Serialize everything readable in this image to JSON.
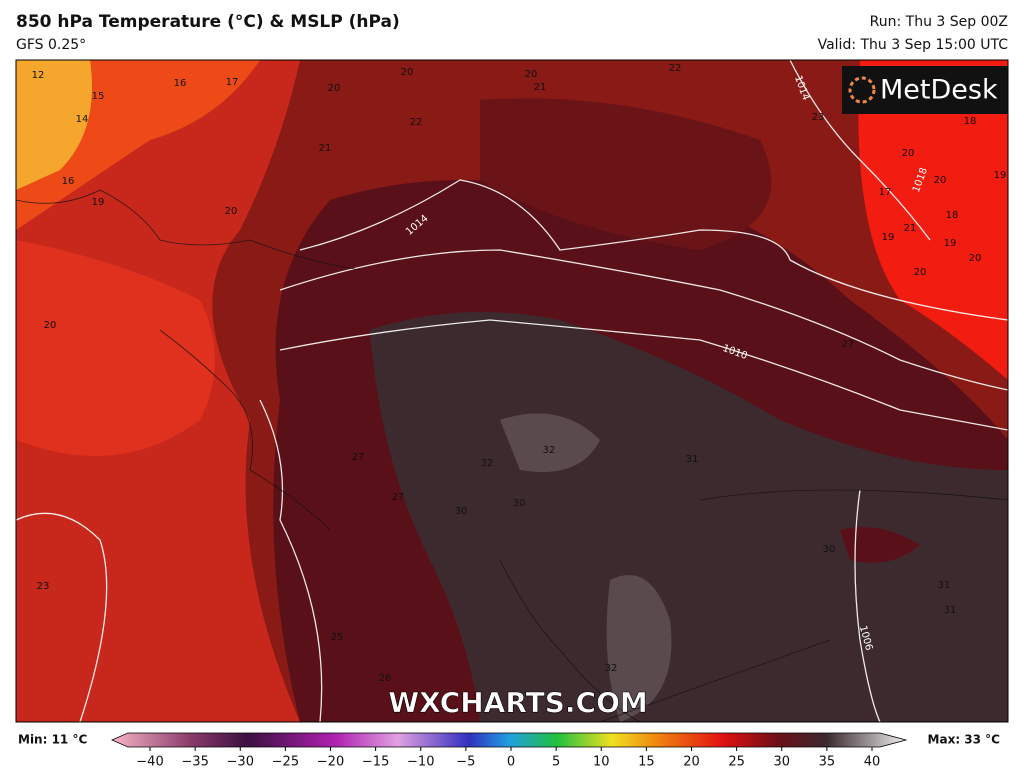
{
  "header": {
    "title": "850 hPa Temperature (°C) & MSLP (hPa)",
    "model": "GFS 0.25°",
    "run": "Run: Thu 3 Sep 00Z",
    "valid": "Valid: Thu 3 Sep 15:00 UTC"
  },
  "logo": "MetDesk",
  "watermark": "WXCHARTS.COM",
  "map": {
    "isobar_labels": [
      "1014",
      "1010",
      "1014",
      "1018",
      "1006"
    ],
    "temperature_labels": [
      12,
      15,
      16,
      17,
      20,
      20,
      21,
      22,
      14,
      22,
      20,
      21,
      16,
      19,
      20,
      23,
      18,
      20,
      19,
      17,
      20,
      18,
      21,
      19,
      20,
      20,
      19,
      20,
      27,
      32,
      32,
      31,
      30,
      30,
      30,
      31,
      31,
      27,
      23,
      25,
      26,
      32,
      27
    ]
  },
  "colorbar": {
    "min_label": "Min: 11 °C",
    "max_label": "Max: 33 °C",
    "ticks": [
      {
        "value": -40,
        "label": "−40"
      },
      {
        "value": -35,
        "label": "−35"
      },
      {
        "value": -30,
        "label": "−30"
      },
      {
        "value": -25,
        "label": "−25"
      },
      {
        "value": -20,
        "label": "−20"
      },
      {
        "value": -15,
        "label": "−15"
      },
      {
        "value": -10,
        "label": "−10"
      },
      {
        "value": -5,
        "label": "−5"
      },
      0,
      5,
      10,
      15,
      20,
      25,
      30,
      35,
      40
    ]
  }
}
